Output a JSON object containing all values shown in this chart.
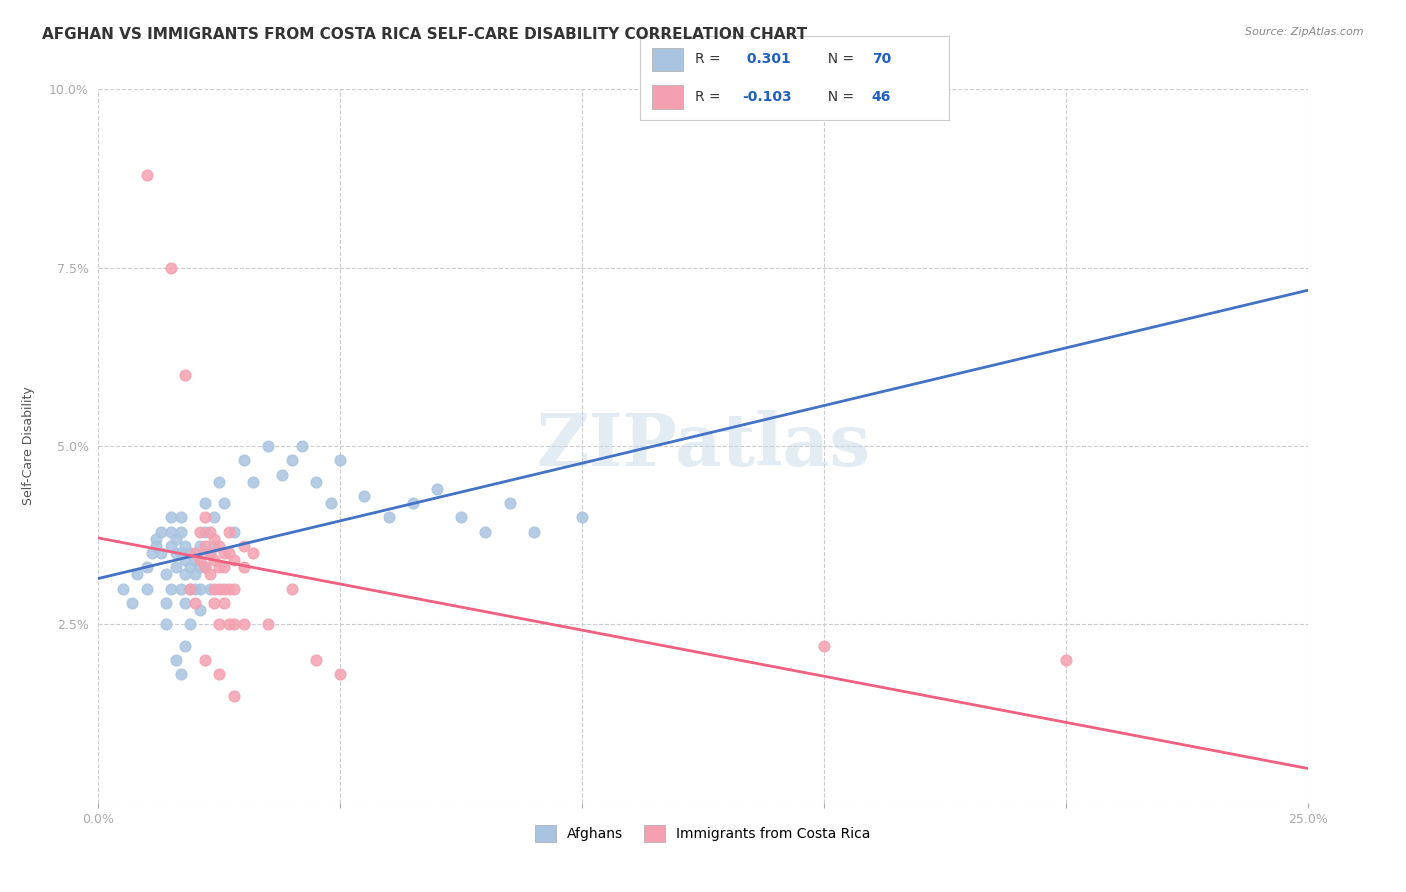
{
  "title": "AFGHAN VS IMMIGRANTS FROM COSTA RICA SELF-CARE DISABILITY CORRELATION CHART",
  "source": "Source: ZipAtlas.com",
  "xlabel": "",
  "ylabel": "Self-Care Disability",
  "xlim": [
    0.0,
    0.25
  ],
  "ylim": [
    0.0,
    0.1
  ],
  "xticks": [
    0.0,
    0.05,
    0.1,
    0.15,
    0.2,
    0.25
  ],
  "xticklabels": [
    "0.0%",
    "",
    "",
    "",
    "",
    "25.0%"
  ],
  "yticks": [
    0.0,
    0.025,
    0.05,
    0.075,
    0.1
  ],
  "yticklabels": [
    "",
    "2.5%",
    "5.0%",
    "7.5%",
    "10.0%"
  ],
  "afghan_color": "#a8c4e0",
  "costarica_color": "#f4a0b0",
  "afghan_line_color": "#4472c4",
  "costarica_line_color": "#f06080",
  "afghan_R": 0.301,
  "afghan_N": 70,
  "costarica_R": -0.103,
  "costarica_N": 46,
  "legend_labels": [
    "Afghans",
    "Immigrants from Costa Rica"
  ],
  "watermark": "ZIPatlas",
  "background_color": "#ffffff",
  "grid_color": "#cccccc",
  "title_fontsize": 11,
  "axis_label_fontsize": 9,
  "tick_fontsize": 9,
  "afghan_points": [
    [
      0.005,
      0.03
    ],
    [
      0.007,
      0.028
    ],
    [
      0.008,
      0.032
    ],
    [
      0.01,
      0.033
    ],
    [
      0.01,
      0.03
    ],
    [
      0.011,
      0.035
    ],
    [
      0.012,
      0.037
    ],
    [
      0.012,
      0.036
    ],
    [
      0.013,
      0.038
    ],
    [
      0.013,
      0.035
    ],
    [
      0.014,
      0.032
    ],
    [
      0.014,
      0.028
    ],
    [
      0.015,
      0.04
    ],
    [
      0.015,
      0.038
    ],
    [
      0.015,
      0.036
    ],
    [
      0.015,
      0.03
    ],
    [
      0.016,
      0.037
    ],
    [
      0.016,
      0.035
    ],
    [
      0.016,
      0.033
    ],
    [
      0.017,
      0.04
    ],
    [
      0.017,
      0.038
    ],
    [
      0.017,
      0.035
    ],
    [
      0.017,
      0.03
    ],
    [
      0.018,
      0.036
    ],
    [
      0.018,
      0.034
    ],
    [
      0.018,
      0.032
    ],
    [
      0.018,
      0.028
    ],
    [
      0.019,
      0.035
    ],
    [
      0.019,
      0.033
    ],
    [
      0.019,
      0.03
    ],
    [
      0.019,
      0.025
    ],
    [
      0.02,
      0.034
    ],
    [
      0.02,
      0.032
    ],
    [
      0.02,
      0.03
    ],
    [
      0.021,
      0.036
    ],
    [
      0.021,
      0.033
    ],
    [
      0.021,
      0.03
    ],
    [
      0.021,
      0.027
    ],
    [
      0.022,
      0.042
    ],
    [
      0.022,
      0.038
    ],
    [
      0.022,
      0.033
    ],
    [
      0.023,
      0.035
    ],
    [
      0.023,
      0.03
    ],
    [
      0.024,
      0.04
    ],
    [
      0.024,
      0.036
    ],
    [
      0.025,
      0.045
    ],
    [
      0.026,
      0.042
    ],
    [
      0.028,
      0.038
    ],
    [
      0.03,
      0.048
    ],
    [
      0.032,
      0.045
    ],
    [
      0.035,
      0.05
    ],
    [
      0.038,
      0.046
    ],
    [
      0.04,
      0.048
    ],
    [
      0.042,
      0.05
    ],
    [
      0.045,
      0.045
    ],
    [
      0.048,
      0.042
    ],
    [
      0.05,
      0.048
    ],
    [
      0.055,
      0.043
    ],
    [
      0.06,
      0.04
    ],
    [
      0.065,
      0.042
    ],
    [
      0.07,
      0.044
    ],
    [
      0.075,
      0.04
    ],
    [
      0.08,
      0.038
    ],
    [
      0.085,
      0.042
    ],
    [
      0.09,
      0.038
    ],
    [
      0.1,
      0.04
    ],
    [
      0.016,
      0.02
    ],
    [
      0.017,
      0.018
    ],
    [
      0.018,
      0.022
    ],
    [
      0.014,
      0.025
    ]
  ],
  "costarica_points": [
    [
      0.01,
      0.088
    ],
    [
      0.015,
      0.075
    ],
    [
      0.018,
      0.06
    ],
    [
      0.02,
      0.035
    ],
    [
      0.021,
      0.038
    ],
    [
      0.021,
      0.034
    ],
    [
      0.022,
      0.04
    ],
    [
      0.022,
      0.036
    ],
    [
      0.022,
      0.033
    ],
    [
      0.023,
      0.038
    ],
    [
      0.023,
      0.035
    ],
    [
      0.023,
      0.032
    ],
    [
      0.024,
      0.037
    ],
    [
      0.024,
      0.034
    ],
    [
      0.024,
      0.03
    ],
    [
      0.024,
      0.028
    ],
    [
      0.025,
      0.036
    ],
    [
      0.025,
      0.033
    ],
    [
      0.025,
      0.03
    ],
    [
      0.025,
      0.025
    ],
    [
      0.026,
      0.035
    ],
    [
      0.026,
      0.033
    ],
    [
      0.026,
      0.03
    ],
    [
      0.026,
      0.028
    ],
    [
      0.027,
      0.038
    ],
    [
      0.027,
      0.035
    ],
    [
      0.027,
      0.03
    ],
    [
      0.027,
      0.025
    ],
    [
      0.028,
      0.034
    ],
    [
      0.028,
      0.03
    ],
    [
      0.028,
      0.025
    ],
    [
      0.03,
      0.036
    ],
    [
      0.03,
      0.033
    ],
    [
      0.03,
      0.025
    ],
    [
      0.032,
      0.035
    ],
    [
      0.035,
      0.025
    ],
    [
      0.04,
      0.03
    ],
    [
      0.045,
      0.02
    ],
    [
      0.05,
      0.018
    ],
    [
      0.15,
      0.022
    ],
    [
      0.2,
      0.02
    ],
    [
      0.025,
      0.018
    ],
    [
      0.028,
      0.015
    ],
    [
      0.022,
      0.02
    ],
    [
      0.019,
      0.03
    ],
    [
      0.02,
      0.028
    ]
  ]
}
